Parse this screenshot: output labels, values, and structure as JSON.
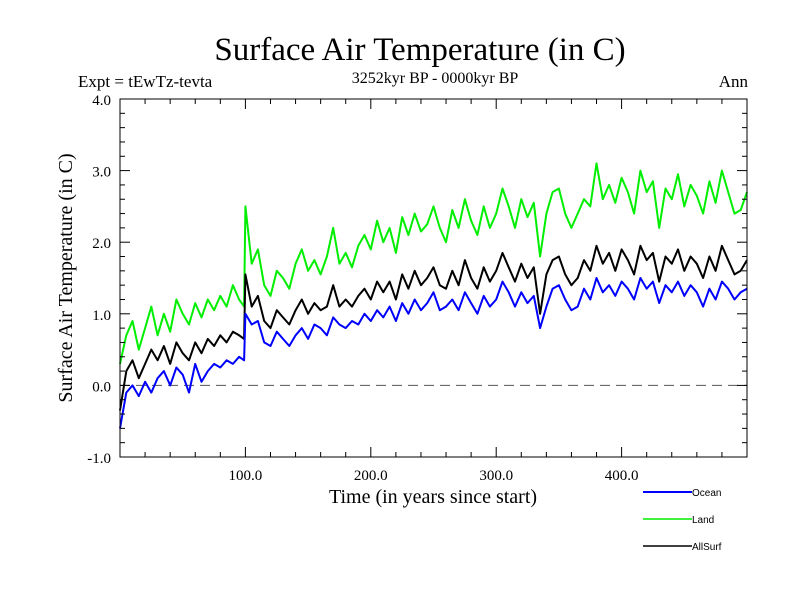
{
  "chart_data": {
    "type": "line",
    "title": "Surface Air Temperature (in C)",
    "subtitle": "3252kyr BP - 0000kyr BP",
    "left_annotation": "Expt = tEwTz-tevta",
    "right_annotation": "Ann",
    "xlabel": "Time (in years since start)",
    "ylabel": "Surface Air Temperature (in C)",
    "xlim": [
      0,
      500
    ],
    "ylim": [
      -1.0,
      4.0
    ],
    "x_ticks": [
      100,
      200,
      300,
      400
    ],
    "x_tick_labels": [
      "100.0",
      "200.0",
      "300.0",
      "400.0"
    ],
    "x_minor_step": 20,
    "y_ticks": [
      -1.0,
      0.0,
      1.0,
      2.0,
      3.0,
      4.0
    ],
    "y_tick_labels": [
      "-1.0",
      "0.0",
      "1.0",
      "2.0",
      "3.0",
      "4.0"
    ],
    "y_minor_step": 0.2,
    "reference_line": {
      "y": 0.0,
      "style": "dashed"
    },
    "grid": false,
    "legend_position": "bottom-right",
    "x": [
      0,
      5,
      10,
      15,
      20,
      25,
      30,
      35,
      40,
      45,
      50,
      55,
      60,
      65,
      70,
      75,
      80,
      85,
      90,
      95,
      99,
      100,
      105,
      110,
      115,
      120,
      125,
      130,
      135,
      140,
      145,
      150,
      155,
      160,
      165,
      170,
      175,
      180,
      185,
      190,
      195,
      200,
      205,
      210,
      215,
      220,
      225,
      230,
      235,
      240,
      245,
      250,
      255,
      260,
      265,
      270,
      275,
      280,
      285,
      290,
      295,
      300,
      305,
      310,
      315,
      320,
      325,
      330,
      335,
      340,
      345,
      350,
      355,
      360,
      365,
      370,
      375,
      380,
      385,
      390,
      395,
      400,
      405,
      410,
      415,
      420,
      425,
      430,
      435,
      440,
      445,
      450,
      455,
      460,
      465,
      470,
      475,
      480,
      485,
      490,
      495,
      500
    ],
    "series": [
      {
        "name": "Ocean",
        "color": "#0000ff",
        "values": [
          -0.6,
          -0.1,
          0.0,
          -0.15,
          0.05,
          -0.1,
          0.1,
          0.2,
          0.0,
          0.25,
          0.15,
          -0.1,
          0.3,
          0.05,
          0.2,
          0.3,
          0.25,
          0.35,
          0.3,
          0.4,
          0.35,
          1.0,
          0.85,
          0.9,
          0.6,
          0.55,
          0.75,
          0.65,
          0.55,
          0.7,
          0.8,
          0.65,
          0.85,
          0.8,
          0.7,
          0.95,
          0.85,
          0.8,
          0.9,
          0.85,
          1.0,
          0.9,
          1.05,
          0.95,
          1.1,
          0.9,
          1.15,
          1.0,
          1.2,
          1.05,
          1.15,
          1.3,
          1.05,
          1.1,
          1.2,
          1.05,
          1.3,
          1.15,
          1.0,
          1.25,
          1.1,
          1.2,
          1.45,
          1.3,
          1.1,
          1.3,
          1.15,
          1.25,
          0.8,
          1.1,
          1.35,
          1.4,
          1.2,
          1.05,
          1.1,
          1.35,
          1.2,
          1.5,
          1.3,
          1.4,
          1.25,
          1.45,
          1.35,
          1.2,
          1.5,
          1.35,
          1.45,
          1.15,
          1.4,
          1.3,
          1.45,
          1.25,
          1.4,
          1.3,
          1.1,
          1.35,
          1.2,
          1.45,
          1.35,
          1.2,
          1.3,
          1.35
        ]
      },
      {
        "name": "Land",
        "color": "#00ee00",
        "values": [
          0.3,
          0.7,
          0.9,
          0.5,
          0.8,
          1.1,
          0.7,
          1.0,
          0.75,
          1.2,
          1.0,
          0.85,
          1.15,
          0.95,
          1.2,
          1.05,
          1.25,
          1.1,
          1.4,
          1.2,
          1.1,
          2.5,
          1.7,
          1.9,
          1.4,
          1.25,
          1.6,
          1.5,
          1.35,
          1.7,
          1.9,
          1.6,
          1.75,
          1.55,
          1.8,
          2.2,
          1.7,
          1.85,
          1.65,
          1.95,
          2.1,
          1.9,
          2.3,
          2.0,
          2.2,
          1.85,
          2.35,
          2.1,
          2.4,
          2.15,
          2.25,
          2.5,
          2.2,
          2.0,
          2.45,
          2.2,
          2.6,
          2.3,
          2.1,
          2.5,
          2.2,
          2.4,
          2.75,
          2.5,
          2.2,
          2.6,
          2.35,
          2.55,
          1.8,
          2.4,
          2.7,
          2.75,
          2.4,
          2.2,
          2.4,
          2.6,
          2.5,
          3.1,
          2.6,
          2.8,
          2.55,
          2.9,
          2.7,
          2.4,
          3.0,
          2.7,
          2.85,
          2.2,
          2.75,
          2.6,
          2.95,
          2.5,
          2.8,
          2.65,
          2.4,
          2.85,
          2.55,
          3.0,
          2.7,
          2.4,
          2.45,
          2.7
        ]
      },
      {
        "name": "AllSurf",
        "color": "#000000",
        "values": [
          -0.35,
          0.2,
          0.35,
          0.1,
          0.3,
          0.5,
          0.35,
          0.55,
          0.3,
          0.6,
          0.45,
          0.35,
          0.6,
          0.45,
          0.65,
          0.55,
          0.7,
          0.6,
          0.75,
          0.7,
          0.65,
          1.55,
          1.1,
          1.25,
          0.9,
          0.8,
          1.05,
          0.95,
          0.85,
          1.05,
          1.2,
          1.0,
          1.15,
          1.05,
          1.1,
          1.4,
          1.1,
          1.2,
          1.1,
          1.25,
          1.35,
          1.2,
          1.45,
          1.3,
          1.45,
          1.2,
          1.55,
          1.35,
          1.6,
          1.4,
          1.5,
          1.65,
          1.4,
          1.35,
          1.6,
          1.4,
          1.75,
          1.5,
          1.35,
          1.65,
          1.45,
          1.6,
          1.85,
          1.65,
          1.45,
          1.7,
          1.5,
          1.65,
          1.0,
          1.55,
          1.75,
          1.8,
          1.55,
          1.4,
          1.5,
          1.75,
          1.6,
          1.95,
          1.7,
          1.85,
          1.6,
          1.9,
          1.75,
          1.55,
          1.95,
          1.75,
          1.85,
          1.45,
          1.8,
          1.7,
          1.9,
          1.6,
          1.8,
          1.7,
          1.5,
          1.8,
          1.6,
          1.95,
          1.75,
          1.55,
          1.6,
          1.75
        ]
      }
    ]
  }
}
